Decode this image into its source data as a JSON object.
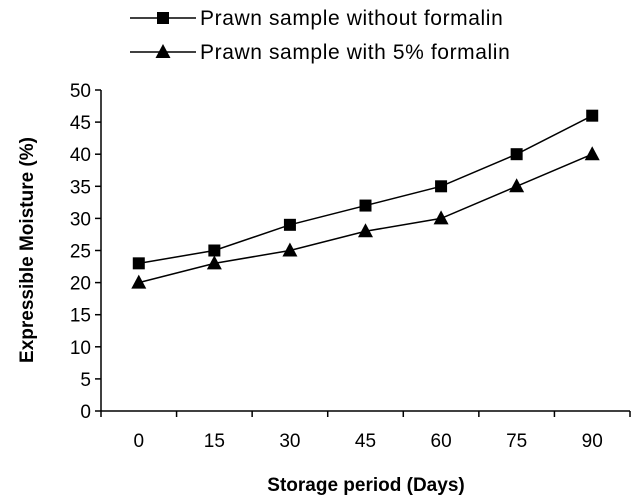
{
  "chart_data": {
    "type": "line",
    "title": "",
    "xlabel": "Storage period (Days)",
    "ylabel": "Expressible Moisture (%)",
    "categories": [
      "0",
      "15",
      "30",
      "45",
      "60",
      "75",
      "90"
    ],
    "ylim": [
      0,
      50
    ],
    "yticks": [
      "0",
      "5",
      "10",
      "15",
      "20",
      "25",
      "30",
      "35",
      "40",
      "45",
      "50"
    ],
    "grid": false,
    "legend_position": "top",
    "series": [
      {
        "name": "Prawn sample without formalin",
        "marker": "square",
        "values": [
          23,
          25,
          29,
          32,
          35,
          40,
          46
        ]
      },
      {
        "name": "Prawn sample with 5% formalin",
        "marker": "triangle",
        "values": [
          20,
          23,
          25,
          28,
          30,
          35,
          40
        ]
      }
    ]
  }
}
